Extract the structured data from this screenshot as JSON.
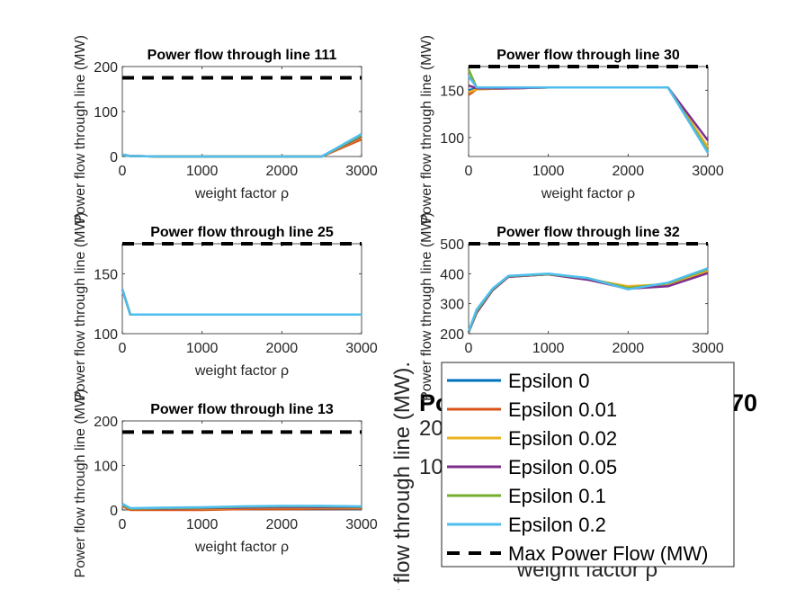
{
  "common": {
    "xlabel": "weight factor ρ",
    "ylabel": "Power flow through line (MW)",
    "xlim": [
      0,
      3000
    ],
    "xticks": [
      0,
      1000,
      2000,
      3000
    ]
  },
  "series_colors": [
    "#0072bd",
    "#d95319",
    "#edb120",
    "#7e2f8e",
    "#77ac30",
    "#4dbeee"
  ],
  "limit_color": "#000000",
  "legend": {
    "placement": "bottom-right",
    "entries": [
      "Epsilon 0",
      "Epsilon 0.01",
      "Epsilon 0.02",
      "Epsilon 0.05",
      "Epsilon 0.1",
      "Epsilon 0.2",
      "Max Power Flow (MW)"
    ]
  },
  "big_panel": {
    "title_fragment": "Po",
    "title_tail": "70",
    "ylabel_visible": "er flow through line (MW).",
    "xlabel_visible": "weight factor ρ",
    "tick_fragments": [
      "20",
      "10"
    ]
  },
  "chart_data": [
    {
      "type": "line",
      "title": "Power flow through line 111",
      "xlabel": "weight factor ρ",
      "ylabel": "Power flow through line (MW)",
      "ylim": [
        0,
        200
      ],
      "yticks": [
        0,
        100,
        200
      ],
      "max_power_flow": 175,
      "x": [
        0,
        100,
        500,
        1000,
        1500,
        2000,
        2500,
        3000
      ],
      "series": [
        {
          "name": "Epsilon 0",
          "values": [
            4,
            1,
            0,
            0,
            0,
            0,
            0,
            40
          ]
        },
        {
          "name": "Epsilon 0.01",
          "values": [
            4,
            1,
            0,
            0,
            0,
            0,
            0,
            38
          ]
        },
        {
          "name": "Epsilon 0.02",
          "values": [
            4,
            1,
            0,
            0,
            0,
            0,
            0,
            43
          ]
        },
        {
          "name": "Epsilon 0.05",
          "values": [
            4,
            1,
            0,
            0,
            0,
            0,
            0,
            45
          ]
        },
        {
          "name": "Epsilon 0.1",
          "values": [
            4,
            1,
            0,
            0,
            0,
            0,
            0,
            47
          ]
        },
        {
          "name": "Epsilon 0.2",
          "values": [
            4,
            1,
            0,
            0,
            0,
            0,
            0,
            50
          ]
        }
      ]
    },
    {
      "type": "line",
      "title": "Power flow through line 30",
      "xlabel": "weight factor ρ",
      "ylabel": "Power flow through line (MW)",
      "ylim": [
        80,
        175
      ],
      "yticks": [
        100,
        150
      ],
      "max_power_flow": 175,
      "x": [
        0,
        100,
        500,
        1000,
        1500,
        2000,
        2500,
        3000
      ],
      "series": [
        {
          "name": "Epsilon 0",
          "values": [
            150,
            152,
            152,
            153,
            153,
            153,
            153,
            85
          ]
        },
        {
          "name": "Epsilon 0.01",
          "values": [
            145,
            151,
            152,
            153,
            153,
            153,
            153,
            88
          ]
        },
        {
          "name": "Epsilon 0.02",
          "values": [
            148,
            151,
            152,
            153,
            153,
            153,
            153,
            90
          ]
        },
        {
          "name": "Epsilon 0.05",
          "values": [
            155,
            152,
            152,
            153,
            153,
            153,
            153,
            97
          ]
        },
        {
          "name": "Epsilon 0.1",
          "values": [
            172,
            153,
            153,
            153,
            153,
            153,
            153,
            86
          ]
        },
        {
          "name": "Epsilon 0.2",
          "values": [
            165,
            153,
            153,
            153,
            153,
            153,
            153,
            84
          ]
        }
      ]
    },
    {
      "type": "line",
      "title": "Power flow through line 25",
      "xlabel": "weight factor ρ",
      "ylabel": "Power flow through line (MW)",
      "ylim": [
        100,
        175
      ],
      "yticks": [
        100,
        150
      ],
      "max_power_flow": 175,
      "x": [
        0,
        100,
        500,
        1000,
        1500,
        2000,
        2500,
        3000
      ],
      "series": [
        {
          "name": "Epsilon 0",
          "values": [
            137,
            116,
            116,
            116,
            116,
            116,
            116,
            116
          ]
        },
        {
          "name": "Epsilon 0.01",
          "values": [
            137,
            116,
            116,
            116,
            116,
            116,
            116,
            116
          ]
        },
        {
          "name": "Epsilon 0.02",
          "values": [
            137,
            116,
            116,
            116,
            116,
            116,
            116,
            116
          ]
        },
        {
          "name": "Epsilon 0.05",
          "values": [
            137,
            116,
            116,
            116,
            116,
            116,
            116,
            116
          ]
        },
        {
          "name": "Epsilon 0.1",
          "values": [
            137,
            116,
            116,
            116,
            116,
            116,
            116,
            116
          ]
        },
        {
          "name": "Epsilon 0.2",
          "values": [
            137,
            116,
            116,
            116,
            116,
            116,
            116,
            116
          ]
        }
      ]
    },
    {
      "type": "line",
      "title": "Power flow through line 32",
      "xlabel": "weight factor ρ",
      "ylabel": "Power flow through line (MW)",
      "ylim": [
        200,
        500
      ],
      "yticks": [
        200,
        300,
        400,
        500
      ],
      "max_power_flow": 500,
      "x": [
        0,
        100,
        300,
        500,
        1000,
        1500,
        2000,
        2500,
        3000
      ],
      "series": [
        {
          "name": "Epsilon 0",
          "values": [
            205,
            270,
            345,
            390,
            398,
            380,
            355,
            360,
            405
          ]
        },
        {
          "name": "Epsilon 0.01",
          "values": [
            205,
            270,
            345,
            390,
            398,
            380,
            355,
            360,
            405
          ]
        },
        {
          "name": "Epsilon 0.02",
          "values": [
            205,
            272,
            345,
            390,
            398,
            382,
            358,
            365,
            410
          ]
        },
        {
          "name": "Epsilon 0.05",
          "values": [
            205,
            270,
            345,
            390,
            398,
            380,
            350,
            358,
            402
          ]
        },
        {
          "name": "Epsilon 0.1",
          "values": [
            207,
            275,
            348,
            392,
            399,
            385,
            352,
            368,
            415
          ]
        },
        {
          "name": "Epsilon 0.2",
          "values": [
            208,
            280,
            350,
            393,
            400,
            385,
            348,
            370,
            418
          ]
        }
      ]
    },
    {
      "type": "line",
      "title": "Power flow through line 13",
      "xlabel": "weight factor ρ",
      "ylabel": "Power flow through line (MW)",
      "ylim": [
        0,
        200
      ],
      "yticks": [
        0,
        100,
        200
      ],
      "max_power_flow": 175,
      "x": [
        0,
        100,
        500,
        1000,
        1500,
        2000,
        2500,
        3000
      ],
      "series": [
        {
          "name": "Epsilon 0",
          "values": [
            8,
            3,
            3,
            3,
            3,
            3,
            3,
            2
          ]
        },
        {
          "name": "Epsilon 0.01",
          "values": [
            8,
            0,
            0,
            0,
            2,
            2,
            3,
            3
          ]
        },
        {
          "name": "Epsilon 0.02",
          "values": [
            8,
            3,
            3,
            3,
            4,
            5,
            5,
            5
          ]
        },
        {
          "name": "Epsilon 0.05",
          "values": [
            10,
            3,
            3,
            4,
            5,
            6,
            6,
            6
          ]
        },
        {
          "name": "Epsilon 0.1",
          "values": [
            12,
            3,
            4,
            5,
            7,
            8,
            8,
            7
          ]
        },
        {
          "name": "Epsilon 0.2",
          "values": [
            14,
            4,
            5,
            6,
            8,
            9,
            9,
            8
          ]
        }
      ]
    }
  ]
}
